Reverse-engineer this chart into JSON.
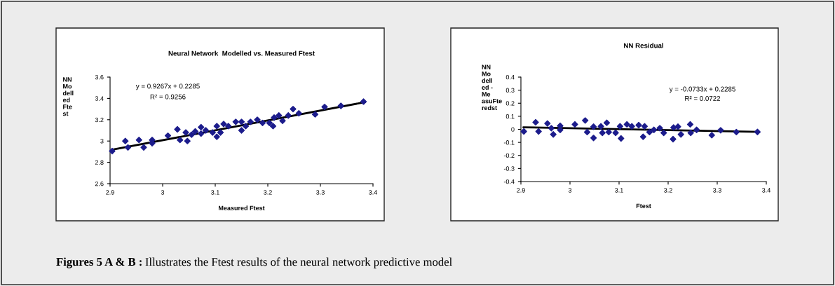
{
  "chart_data": [
    {
      "type": "scatter",
      "title": "Neural Network  Modelled vs. Measured Ftest",
      "xlabel": "Measured Ftest",
      "ylabel": "NN\nMo\ndell\ned\nFte\nst",
      "xlim": [
        2.9,
        3.4
      ],
      "xticks": [
        2.9,
        3,
        3.1,
        3.2,
        3.3,
        3.4
      ],
      "ylim": [
        2.6,
        3.6
      ],
      "yticks": [
        2.6,
        2.8,
        3,
        3.2,
        3.4,
        3.6
      ],
      "grid": false,
      "legend": false,
      "series": [
        {
          "marker": "diamond",
          "color": "#1c1c8c",
          "x": [
            2.904,
            2.929,
            2.934,
            2.955,
            2.964,
            2.98,
            2.98,
            3.01,
            3.028,
            3.033,
            3.047,
            3.044,
            3.055,
            3.062,
            3.073,
            3.073,
            3.082,
            3.095,
            3.103,
            3.103,
            3.11,
            3.116,
            3.125,
            3.139,
            3.15,
            3.15,
            3.158,
            3.167,
            3.18,
            3.19,
            3.203,
            3.21,
            3.212,
            3.221,
            3.228,
            3.239,
            3.248,
            3.259,
            3.29,
            3.308,
            3.339,
            3.382
          ],
          "values": [
            2.906,
            3.0,
            2.94,
            3.01,
            2.94,
            3.01,
            2.98,
            3.05,
            3.11,
            3.01,
            3.0,
            3.08,
            3.06,
            3.09,
            3.13,
            3.07,
            3.1,
            3.08,
            3.14,
            3.04,
            3.08,
            3.16,
            3.14,
            3.18,
            3.1,
            3.18,
            3.14,
            3.18,
            3.2,
            3.17,
            3.17,
            3.14,
            3.22,
            3.24,
            3.19,
            3.24,
            3.3,
            3.26,
            3.25,
            3.32,
            3.33,
            3.37
          ]
        },
        {
          "type": "line",
          "color": "#000000",
          "x": [
            2.905,
            3.385
          ],
          "values": [
            2.92,
            3.365
          ]
        }
      ],
      "annotations": [
        "y = 0.9267x + 0.2285",
        "R² = 0.9256"
      ]
    },
    {
      "type": "scatter",
      "title": "NN Residual",
      "xlabel": "Ftest",
      "ylabel": "NN\nMo\ndell\ned -\nMe\nasuFte\nredst",
      "xlim": [
        2.9,
        3.4
      ],
      "xticks": [
        2.9,
        3,
        3.1,
        3.2,
        3.3,
        3.4
      ],
      "ylim": [
        -0.4,
        0.4
      ],
      "yticks": [
        -0.4,
        -0.3,
        -0.2,
        -0.1,
        0,
        0.1,
        0.2,
        0.3,
        0.4
      ],
      "grid": false,
      "legend": false,
      "series": [
        {
          "marker": "diamond",
          "color": "#1c1c8c",
          "x": [
            2.906,
            2.93,
            2.936,
            2.954,
            2.962,
            2.966,
            2.98,
            2.98,
            3.01,
            3.031,
            3.035,
            3.048,
            3.048,
            3.063,
            3.066,
            3.075,
            3.079,
            3.093,
            3.102,
            3.104,
            3.116,
            3.126,
            3.14,
            3.149,
            3.152,
            3.162,
            3.171,
            3.183,
            3.191,
            3.21,
            3.211,
            3.22,
            3.226,
            3.245,
            3.246,
            3.258,
            3.289,
            3.307,
            3.339,
            3.382
          ],
          "values": [
            -0.016,
            0.054,
            -0.016,
            0.045,
            0.009,
            -0.039,
            0.027,
            -0.004,
            0.038,
            0.068,
            -0.021,
            -0.066,
            0.02,
            0.023,
            -0.027,
            0.05,
            -0.021,
            -0.027,
            0.023,
            -0.07,
            0.038,
            0.023,
            0.032,
            -0.057,
            0.023,
            -0.021,
            -0.004,
            0.009,
            -0.027,
            -0.075,
            0.014,
            0.02,
            -0.039,
            0.038,
            -0.027,
            -0.004,
            -0.045,
            -0.007,
            -0.021,
            -0.02
          ]
        },
        {
          "type": "line",
          "color": "#000000",
          "x": [
            2.905,
            3.385
          ],
          "values": [
            0.016,
            -0.02
          ]
        }
      ],
      "annotations": [
        "y = -0.0733x + 0.2285",
        "R² = 0.0722",
        "Figures 5 A & B :",
        " Illustrates the Ftest results of the neural network predictive model"
      ]
    }
  ]
}
